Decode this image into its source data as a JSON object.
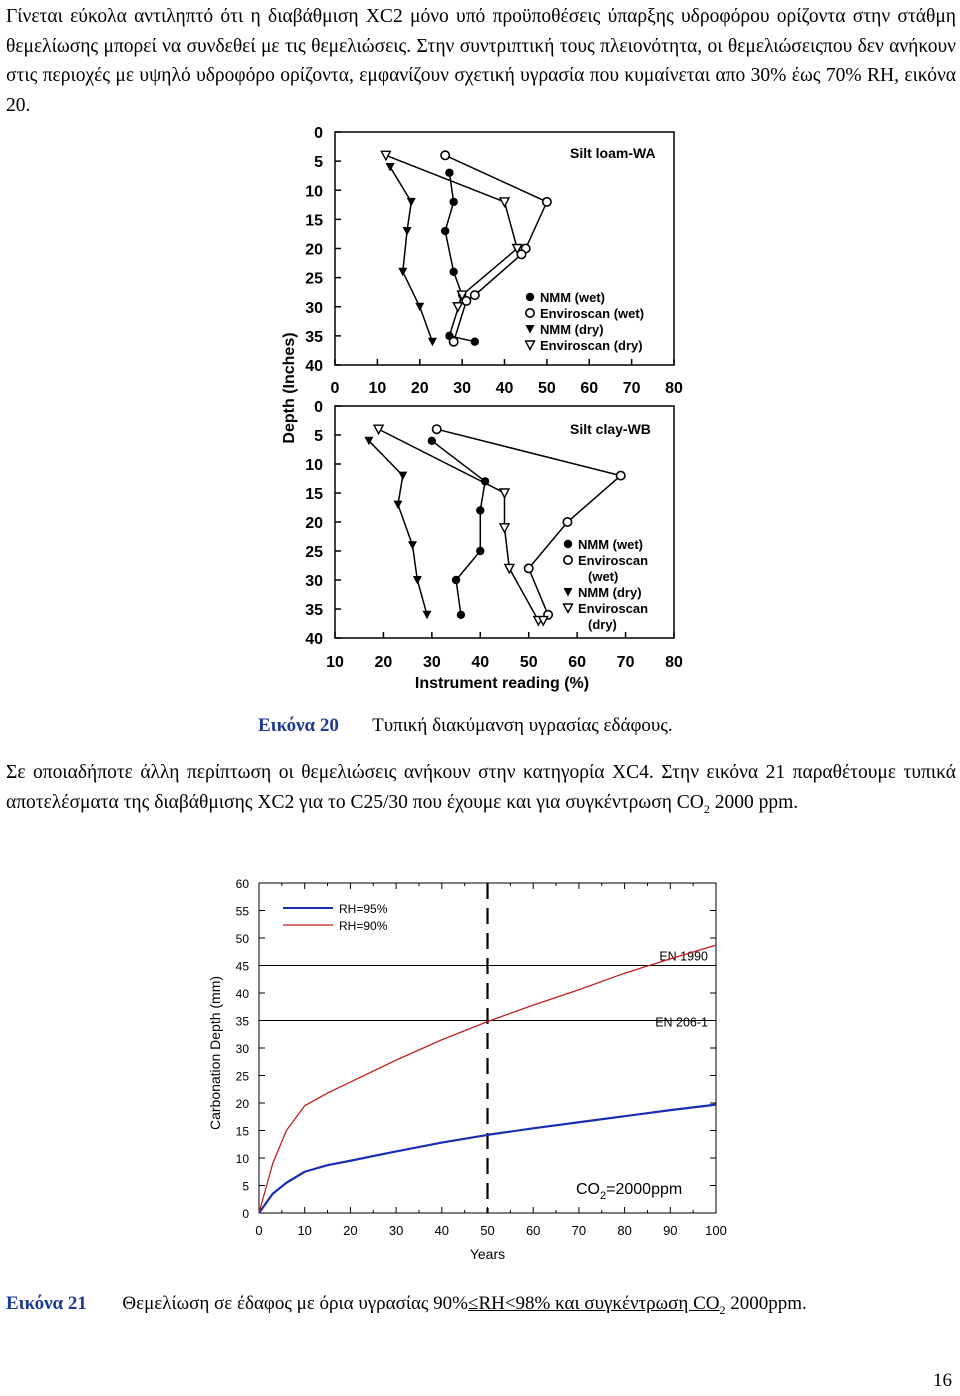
{
  "text": {
    "para1": "Γίνεται εύκολα αντιληπτό ότι η διαβάθμιση XC2 μόνο υπό προϋποθέσεις ύπαρξης υδροφόρου ορίζοντα στην στάθμη θεμελίωσης μπορεί να συνδεθεί με τις θεμελιώσεις. Στην συντριπτική τους πλειονότητα, οι θεμελιώσειςπου δεν ανήκουν στις περιοχές με υψηλό υδροφόρο ορίζοντα, εμφανίζουν σχετική υγρασία που κυμαίνεται απο 30% έως 70% RH, εικόνα 20.",
    "fig20_label": "Εικόνα 20",
    "fig20_caption": "Τυπική διακύμανση υγρασίας εδάφους.",
    "para2_before": "Σε οποιαδήποτε άλλη περίπτωση οι θεμελιώσεις ανήκουν στην κατηγορία XC4. Στην εικόνα 21 παραθέτουμε τυπικά αποτελέσματα της διαβάθμισης XC2 για το C25/30 που έχουμε και για συγκέντρωση CO",
    "para2_sub": "2",
    "para2_after": " 2000 ppm.",
    "fig21_label": "Εικόνα 21",
    "fig21_caption_a": "Θεμελίωση σε έδαφος με όρια υγρασίας 90%",
    "fig21_caption_b": "≤RH<98% και συγκέντρωση CO",
    "fig21_caption_sub": "2",
    "fig21_caption_c": " 2000ppm.",
    "page_number": "16"
  },
  "chart_data": [
    {
      "type": "line",
      "title": "Silt loam-WA",
      "ylabel": "Depth (Inches)",
      "xlabel": "",
      "xlim": [
        0,
        80
      ],
      "ylim": [
        0,
        40
      ],
      "xticks": [
        "0",
        "10",
        "20",
        "30",
        "40",
        "50",
        "60",
        "70",
        "80"
      ],
      "yticks": [
        "0",
        "5",
        "10",
        "15",
        "20",
        "25",
        "30",
        "35",
        "40"
      ],
      "legend": [
        "NMM (wet)",
        "Enviroscan (wet)",
        "NMM (dry)",
        "Enviroscan (dry)"
      ],
      "series": [
        {
          "name": "NMM (wet)",
          "marker": "filled-circle",
          "points": [
            [
              27,
              7
            ],
            [
              28,
              12
            ],
            [
              26,
              17
            ],
            [
              28,
              24
            ],
            [
              30,
              28
            ],
            [
              27,
              35
            ],
            [
              33,
              36
            ]
          ]
        },
        {
          "name": "Enviroscan (wet)",
          "marker": "open-circle",
          "points": [
            [
              26,
              4
            ],
            [
              50,
              12
            ],
            [
              45,
              20
            ],
            [
              44,
              21
            ],
            [
              33,
              28
            ],
            [
              31,
              29
            ],
            [
              28,
              36
            ]
          ]
        },
        {
          "name": "NMM (dry)",
          "marker": "filled-triangle",
          "points": [
            [
              13,
              6
            ],
            [
              18,
              12
            ],
            [
              17,
              17
            ],
            [
              16,
              24
            ],
            [
              20,
              30
            ],
            [
              23,
              36
            ]
          ]
        },
        {
          "name": "Enviroscan (dry)",
          "marker": "open-triangle",
          "points": [
            [
              12,
              4
            ],
            [
              40,
              12
            ],
            [
              43,
              20
            ],
            [
              30,
              28
            ],
            [
              29,
              30
            ]
          ]
        }
      ]
    },
    {
      "type": "line",
      "title": "Silt clay-WB",
      "ylabel": "Depth (Inches)",
      "xlabel": "Instrument reading (%)",
      "xlim": [
        10,
        80
      ],
      "ylim": [
        0,
        40
      ],
      "xticks": [
        "10",
        "20",
        "30",
        "40",
        "50",
        "60",
        "70",
        "80"
      ],
      "yticks": [
        "0",
        "5",
        "10",
        "15",
        "20",
        "25",
        "30",
        "35",
        "40"
      ],
      "legend": [
        "NMM (wet)",
        "Enviroscan (wet)",
        "NMM (dry)",
        "Enviroscan (dry)"
      ],
      "series": [
        {
          "name": "NMM (wet)",
          "marker": "filled-circle",
          "points": [
            [
              30,
              6
            ],
            [
              41,
              13
            ],
            [
              40,
              18
            ],
            [
              40,
              25
            ],
            [
              35,
              30
            ],
            [
              36,
              36
            ]
          ]
        },
        {
          "name": "Enviroscan (wet)",
          "marker": "open-circle",
          "points": [
            [
              31,
              4
            ],
            [
              69,
              12
            ],
            [
              58,
              20
            ],
            [
              50,
              28
            ],
            [
              54,
              36
            ]
          ]
        },
        {
          "name": "NMM (dry)",
          "marker": "filled-triangle",
          "points": [
            [
              17,
              6
            ],
            [
              24,
              12
            ],
            [
              23,
              17
            ],
            [
              26,
              24
            ],
            [
              27,
              30
            ],
            [
              29,
              36
            ]
          ]
        },
        {
          "name": "Enviroscan (dry)",
          "marker": "open-triangle",
          "points": [
            [
              19,
              4
            ],
            [
              45,
              15
            ],
            [
              45,
              21
            ],
            [
              46,
              28
            ],
            [
              52,
              37
            ],
            [
              53,
              37
            ]
          ]
        }
      ]
    },
    {
      "type": "line",
      "title": "",
      "xlabel": "Years",
      "ylabel": "Carbonation Depth (mm)",
      "xlim": [
        0,
        100
      ],
      "ylim": [
        0,
        60
      ],
      "xticks": [
        "0",
        "10",
        "20",
        "30",
        "40",
        "50",
        "60",
        "70",
        "80",
        "90",
        "100"
      ],
      "yticks": [
        "0",
        "5",
        "10",
        "15",
        "20",
        "25",
        "30",
        "35",
        "40",
        "45",
        "50",
        "55",
        "60"
      ],
      "legend": [
        "RH=95%",
        "RH=90%"
      ],
      "series": [
        {
          "name": "RH=95%",
          "color": "#1a2fb0",
          "x": [
            0,
            3,
            6,
            10,
            15,
            20,
            30,
            40,
            50,
            60,
            70,
            80,
            90,
            100
          ],
          "y": [
            0,
            3.5,
            5.5,
            7.5,
            8.7,
            9.5,
            11.2,
            12.8,
            14.2,
            15.4,
            16.5,
            17.6,
            18.7,
            19.7
          ]
        },
        {
          "name": "RH=90%",
          "color": "#c02020",
          "x": [
            0,
            3,
            6,
            10,
            15,
            20,
            30,
            40,
            50,
            60,
            70,
            80,
            90,
            100
          ],
          "y": [
            0,
            9,
            15,
            19.5,
            21.8,
            23.8,
            27.8,
            31.5,
            34.8,
            37.8,
            40.6,
            43.6,
            46.2,
            48.7
          ]
        }
      ],
      "reference_lines": [
        {
          "label": "EN 1990",
          "y": 45
        },
        {
          "label": "EN 206-1",
          "y": 35
        },
        {
          "label": "",
          "x": 50,
          "style": "dashed"
        }
      ],
      "annotation": {
        "text": "CO",
        "sub": "2",
        "rest": "=2000ppm"
      }
    }
  ]
}
